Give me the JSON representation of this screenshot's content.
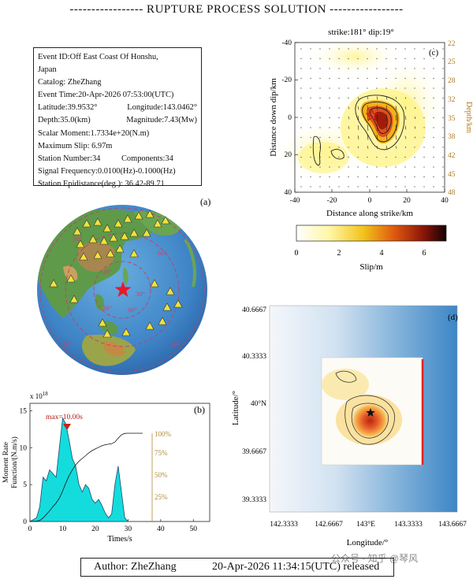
{
  "title": "----------------- RUPTURE PROCESS SOLUTION -----------------",
  "event_info": {
    "event_id": "Event ID:Off East Coast Of Honshu,",
    "event_id_cont": "Japan",
    "catalog": "Catalog: ZheZhang",
    "event_time": "Event Time:20-Apr-2026 07:53:00(UTC)",
    "latitude": "Latitude:39.9532°",
    "longitude": "Longitude:143.0462°",
    "depth": "Depth:35.0(km)",
    "magnitude": "Magnitude:7.43(Mw)",
    "scalar_moment": "Scalar Moment:1.7334e+20(N.m)",
    "max_slip": "Maximum Slip: 6.97m",
    "station_number": "Station Number:34",
    "components": "Components:34",
    "signal_frequency": "Signal Frequency:0.0100(Hz)-0.1000(Hz)",
    "epidistance": "Station Epidistance(deg.): 36.42-89.71"
  },
  "panel_a": {
    "label": "(a)",
    "ring_labels": [
      "30°",
      "30°",
      "60°",
      "60°",
      "90°",
      "90°",
      "30°",
      "30°"
    ],
    "station_count": 34,
    "colors": {
      "ocean": "#3f86c9",
      "land": "#5e9a4a",
      "ring": "#c0406a",
      "epicenter": "#e8182a",
      "station": "#f2e23a"
    }
  },
  "panel_b": {
    "label": "(b)",
    "exponent": "x 10",
    "exponent_power": "18",
    "peak_label": "max=10.00s",
    "ylabel_line1": "Moment Rate",
    "ylabel_line2": "Function/(N.m/s)",
    "xlabel": "Times/s",
    "xticks": [
      "0",
      "10",
      "20",
      "30",
      "40",
      "50"
    ],
    "yticks": [
      "0",
      "5",
      "10",
      "15"
    ],
    "pct_ticks": [
      "25%",
      "50%",
      "75%",
      "100%"
    ]
  },
  "panel_c": {
    "label": "(c)",
    "header": "strike:181°  dip:19°",
    "xlabel": "Distance along strike/km",
    "ylabel": "Distance down dip/km",
    "right_label": "Depth/km",
    "xticks": [
      "-40",
      "-20",
      "0",
      "20",
      "40"
    ],
    "yticks": [
      "-40",
      "-20",
      "0",
      "20",
      "40"
    ],
    "depth_ticks": [
      "22",
      "25",
      "28",
      "32",
      "35",
      "38",
      "42",
      "45",
      "48"
    ],
    "colorbar_ticks": [
      "0",
      "2",
      "4",
      "6"
    ],
    "colorbar_label": "Slip/m"
  },
  "panel_d": {
    "label": "(d)",
    "xlabel": "Longitude/°",
    "ylabel": "Latitude/°",
    "yticks": [
      "40.6667",
      "40.3333",
      "40°N",
      "39.6667",
      "39.3333"
    ],
    "xticks": [
      "142.3333",
      "142.6667",
      "143°E",
      "143.3333",
      "143.6667"
    ]
  },
  "footer": {
    "author": "Author: ZheZhang",
    "released": "20-Apr-2026 11:34:15(UTC)  released"
  },
  "watermark": "公众号 · 知乎 @琴风",
  "chart_data": [
    {
      "type": "area",
      "xlabel": "Times/s",
      "ylabel": "Moment Rate Function/(N.m/s)",
      "x": [
        0,
        2,
        3,
        4,
        5,
        6,
        7,
        8,
        9,
        10,
        11,
        12,
        13,
        14,
        15,
        16,
        17,
        18,
        19,
        20,
        21,
        22,
        23,
        24,
        25,
        26,
        27,
        28,
        29,
        30
      ],
      "values": [
        0,
        0.5,
        2,
        6,
        5.5,
        7,
        6.5,
        6,
        10,
        14,
        13.2,
        11,
        8.5,
        7.5,
        5,
        4,
        5,
        4.5,
        3,
        2.5,
        3,
        2.2,
        1.2,
        0.5,
        1,
        5,
        7.5,
        4,
        0.5,
        0
      ],
      "xlim": [
        0,
        55
      ],
      "ylim": [
        0,
        16
      ],
      "y_scale_note": "x 10^18",
      "peak_time_s": 10.0,
      "cumulative_percent_axis": [
        "25%",
        "50%",
        "75%",
        "100%"
      ]
    },
    {
      "type": "heatmap",
      "title": "strike:181°  dip:19°",
      "xlabel": "Distance along strike/km",
      "ylabel": "Distance down dip/km",
      "xlim": [
        -40,
        40
      ],
      "ylim": [
        -40,
        40
      ],
      "max_slip_m": 6.97,
      "colorbar_range": [
        0,
        7
      ],
      "colorbar_label": "Slip/m"
    }
  ]
}
